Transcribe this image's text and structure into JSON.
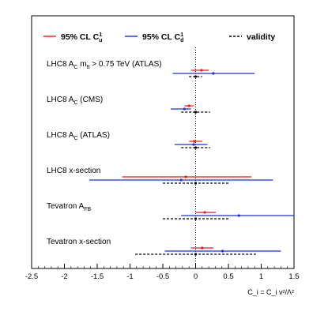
{
  "chart_data": {
    "type": "scatter",
    "subtype": "interval-plot",
    "title": "",
    "xlabel": "C_i = C_i v²/Λ²",
    "ylabel": "",
    "xlim": [
      -2.5,
      1.5
    ],
    "xticks": [
      -2.5,
      -2,
      -1.5,
      -1,
      -0.5,
      0,
      0.5,
      1,
      1.5
    ],
    "xtick_labels": [
      "-2.5",
      "-2",
      "-1.5",
      "-1",
      "-0.5",
      "0",
      "0.5",
      "1",
      "1.5"
    ],
    "vertical_reference_line": 0,
    "legend": {
      "placement": "top",
      "entries": [
        {
          "key": "u",
          "text": "95% CL C",
          "sub": "u",
          "sup": "1",
          "color": "#e41a1c",
          "dash": false
        },
        {
          "key": "d",
          "text": "95% CL C",
          "sub": "d",
          "sup": "1",
          "color": "#1f2fd6",
          "dash": false
        },
        {
          "key": "validity",
          "text": "validity",
          "sub": "",
          "sup": "",
          "color": "#000000",
          "dash": true
        }
      ]
    },
    "rows": [
      {
        "label": "LHC8 A_C m_tt > 0.75 TeV (ATLAS)",
        "label_parts": {
          "base": "LHC8 A",
          "sub": "C",
          "mid": " m",
          "sub2": "tt",
          "rest": " > 0.75 TeV (ATLAS)"
        },
        "u": {
          "center": 0.09,
          "low": -0.07,
          "high": 0.2
        },
        "d": {
          "center": 0.27,
          "low": -0.35,
          "high": 0.9
        },
        "validity": {
          "center": 0.0,
          "low": -0.1,
          "high": 0.1
        }
      },
      {
        "label": "LHC8 A_C (CMS)",
        "label_parts": {
          "base": "LHC8 A",
          "sub": "C",
          "mid": "",
          "sub2": "",
          "rest": " (CMS)"
        },
        "u": {
          "center": -0.1,
          "low": -0.17,
          "high": -0.03
        },
        "d": {
          "center": -0.17,
          "low": -0.38,
          "high": -0.07
        },
        "validity": {
          "center": 0.0,
          "low": -0.22,
          "high": 0.22
        }
      },
      {
        "label": "LHC8 A_C (ATLAS)",
        "label_parts": {
          "base": "LHC8 A",
          "sub": "C",
          "mid": "",
          "sub2": "",
          "rest": " (ATLAS)"
        },
        "u": {
          "center": -0.02,
          "low": -0.1,
          "high": 0.1
        },
        "d": {
          "center": -0.03,
          "low": -0.32,
          "high": 0.18
        },
        "validity": {
          "center": 0.0,
          "low": -0.22,
          "high": 0.22
        }
      },
      {
        "label": "LHC8 x-section",
        "label_parts": {
          "base": "LHC8 x-section",
          "sub": "",
          "mid": "",
          "sub2": "",
          "rest": ""
        },
        "u": {
          "center": -0.15,
          "low": -1.12,
          "high": 0.85
        },
        "d": {
          "center": -0.22,
          "low": -1.62,
          "high": 1.18
        },
        "validity": {
          "center": 0.0,
          "low": -0.5,
          "high": 0.5
        }
      },
      {
        "label": "Tevatron A_FB",
        "label_parts": {
          "base": "Tevatron A",
          "sub": "FB",
          "mid": "",
          "sub2": "",
          "rest": ""
        },
        "u": {
          "center": 0.14,
          "low": 0.0,
          "high": 0.31
        },
        "d": {
          "center": 0.66,
          "low": -0.22,
          "high": 1.5
        },
        "validity": {
          "center": 0.0,
          "low": -0.5,
          "high": 0.5
        }
      },
      {
        "label": "Tevatron x-section",
        "label_parts": {
          "base": "Tevatron x-section",
          "sub": "",
          "mid": "",
          "sub2": "",
          "rest": ""
        },
        "u": {
          "center": 0.1,
          "low": -0.07,
          "high": 0.27
        },
        "d": {
          "center": 0.41,
          "low": -0.47,
          "high": 1.3
        },
        "validity": {
          "center": 0.0,
          "low": -0.92,
          "high": 0.92
        }
      }
    ],
    "grid": false
  }
}
